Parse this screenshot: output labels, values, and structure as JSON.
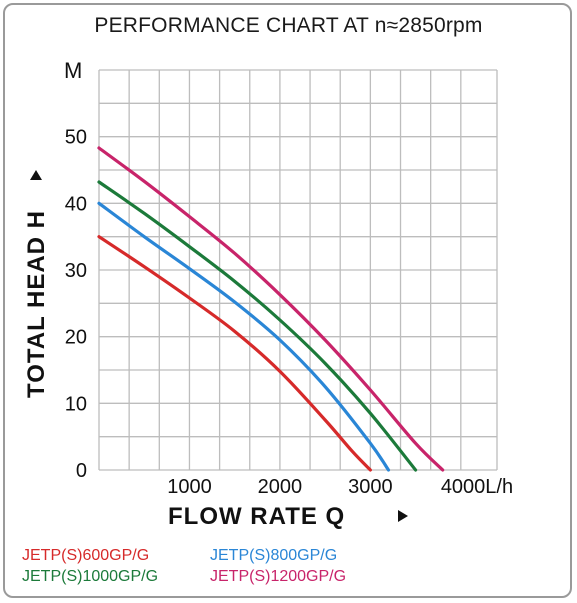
{
  "title": "PERFORMANCE CHART AT n≈2850rpm",
  "y_unit": "M",
  "y_axis_title": "TOTAL  HEAD  H",
  "x_axis_title": "FLOW  RATE  Q",
  "colors": {
    "grid": "#bdbdbd",
    "s600": "#d62a2a",
    "s800": "#2a86d6",
    "s1000": "#1c7a3a",
    "s1200": "#c8246a"
  },
  "chart_data": {
    "type": "line",
    "title": "PERFORMANCE CHART AT n≈2850rpm",
    "xlabel": "FLOW  RATE  Q",
    "ylabel": "TOTAL  HEAD  H",
    "xlim": [
      0,
      4400
    ],
    "ylim": [
      0,
      60
    ],
    "x_ticks": [
      1000,
      2000,
      3000,
      4000
    ],
    "x_tick_labels": [
      "1000",
      "2000",
      "3000",
      "4000L/h"
    ],
    "y_ticks": [
      0,
      10,
      20,
      30,
      40,
      50
    ],
    "y_tick_labels": [
      "0",
      "10",
      "20",
      "30",
      "40",
      "50"
    ],
    "grid": true,
    "legend_position": "bottom",
    "series": [
      {
        "name": "JETP(S)600GP/G",
        "color": "#d62a2a",
        "x": [
          0,
          500,
          1000,
          1500,
          2000,
          2500,
          2800,
          3000
        ],
        "y": [
          35,
          30.5,
          25.8,
          20.8,
          14.8,
          7.5,
          2.8,
          0
        ]
      },
      {
        "name": "JETP(S)800GP/G",
        "color": "#2a86d6",
        "x": [
          0,
          500,
          1000,
          1500,
          2000,
          2500,
          3000,
          3200
        ],
        "y": [
          40,
          35,
          30.2,
          25.2,
          19.5,
          12.5,
          4,
          0
        ]
      },
      {
        "name": "JETP(S)1000GP/G",
        "color": "#1c7a3a",
        "x": [
          0,
          500,
          1000,
          1500,
          2000,
          2500,
          3000,
          3500
        ],
        "y": [
          43.2,
          38.5,
          33.5,
          28.3,
          22.5,
          16,
          8.5,
          0
        ]
      },
      {
        "name": "JETP(S)1200GP/G",
        "color": "#c8246a",
        "x": [
          0,
          500,
          1000,
          1500,
          2000,
          2500,
          3000,
          3500,
          3800
        ],
        "y": [
          48.3,
          43.3,
          38,
          32.5,
          26.3,
          19.5,
          12,
          4,
          0
        ]
      }
    ]
  },
  "legend": [
    {
      "label": "JETP(S)600GP/G",
      "color": "#d62a2a"
    },
    {
      "label": "JETP(S)800GP/G",
      "color": "#2a86d6"
    },
    {
      "label": "JETP(S)1000GP/G",
      "color": "#1c7a3a"
    },
    {
      "label": "JETP(S)1200GP/G",
      "color": "#c8246a"
    }
  ]
}
